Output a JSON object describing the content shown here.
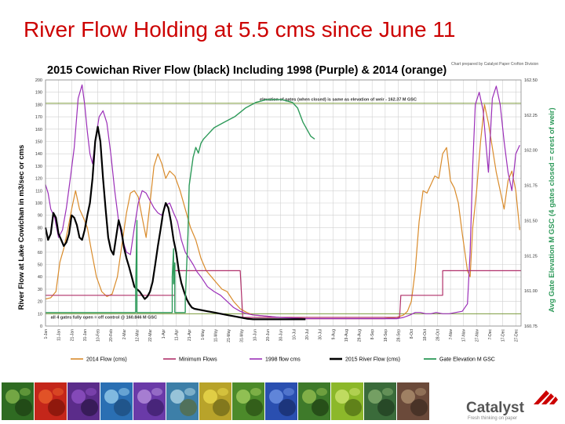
{
  "slide": {
    "title": "River Flow Holding at 5.5 cms since June 11"
  },
  "branding": {
    "name": "Catalyst",
    "tagline": "Fresh thinking on paper",
    "accent_color": "#cc0000"
  },
  "chart_data": {
    "type": "line",
    "title": "2015 Cowichan River Flow (black) Including 1998 (Purple) & 2014 (orange)",
    "credit": "Chart prepared by Catalyst Paper Crofton Division",
    "ylabel": "River Flow at Lake Cowichan in m3/sec or cms",
    "y2label": "Avg Gate Elevation M GSC (4 gates closed = crest of weir)",
    "ylim": [
      0,
      200
    ],
    "y2lim": [
      160.75,
      162.5
    ],
    "y_ticks": [
      {
        "v": 0,
        "label": "0"
      },
      {
        "v": 10,
        "label": "10"
      },
      {
        "v": 20,
        "label": "20"
      },
      {
        "v": 30,
        "label": "30"
      },
      {
        "v": 40,
        "label": "40"
      },
      {
        "v": 50,
        "label": "50"
      },
      {
        "v": 60,
        "label": "60"
      },
      {
        "v": 70,
        "label": "70"
      },
      {
        "v": 80,
        "label": "80"
      },
      {
        "v": 90,
        "label": "90"
      },
      {
        "v": 100,
        "label": "100"
      },
      {
        "v": 110,
        "label": "110"
      },
      {
        "v": 120,
        "label": "120"
      },
      {
        "v": 130,
        "label": "130"
      },
      {
        "v": 140,
        "label": "140"
      },
      {
        "v": 150,
        "label": "150"
      },
      {
        "v": 160,
        "label": "160"
      },
      {
        "v": 170,
        "label": "170"
      },
      {
        "v": 180,
        "label": "180"
      },
      {
        "v": 190,
        "label": "190"
      },
      {
        "v": 200,
        "label": "200"
      }
    ],
    "y2_ticks": [
      {
        "v": 160.75,
        "label": "160.75"
      },
      {
        "v": 161.0,
        "label": "161.00"
      },
      {
        "v": 161.25,
        "label": "161.25"
      },
      {
        "v": 161.5,
        "label": "161.50"
      },
      {
        "v": 161.75,
        "label": "161.75"
      },
      {
        "v": 162.0,
        "label": "162.00"
      },
      {
        "v": 162.25,
        "label": "162.25"
      },
      {
        "v": 162.5,
        "label": "162.50"
      }
    ],
    "x_range": [
      1,
      365
    ],
    "x_ticks": [
      {
        "d": 1,
        "label": "1-Jan"
      },
      {
        "d": 11,
        "label": "11-Jan"
      },
      {
        "d": 21,
        "label": "21-Jan"
      },
      {
        "d": 31,
        "label": "31-Jan"
      },
      {
        "d": 41,
        "label": "10-Feb"
      },
      {
        "d": 51,
        "label": "20-Feb"
      },
      {
        "d": 61,
        "label": "2-Mar"
      },
      {
        "d": 71,
        "label": "12-Mar"
      },
      {
        "d": 81,
        "label": "22-Mar"
      },
      {
        "d": 91,
        "label": "1-Apr"
      },
      {
        "d": 101,
        "label": "11-Apr"
      },
      {
        "d": 111,
        "label": "21-Apr"
      },
      {
        "d": 121,
        "label": "1-May"
      },
      {
        "d": 131,
        "label": "11-May"
      },
      {
        "d": 141,
        "label": "21-May"
      },
      {
        "d": 151,
        "label": "31-May"
      },
      {
        "d": 161,
        "label": "10-Jun"
      },
      {
        "d": 171,
        "label": "20-Jun"
      },
      {
        "d": 181,
        "label": "30-Jun"
      },
      {
        "d": 191,
        "label": "10-Jul"
      },
      {
        "d": 201,
        "label": "20-Jul"
      },
      {
        "d": 211,
        "label": "30-Jul"
      },
      {
        "d": 221,
        "label": "9-Aug"
      },
      {
        "d": 231,
        "label": "19-Aug"
      },
      {
        "d": 241,
        "label": "29-Aug"
      },
      {
        "d": 251,
        "label": "8-Sep"
      },
      {
        "d": 261,
        "label": "18-Sep"
      },
      {
        "d": 271,
        "label": "28-Sep"
      },
      {
        "d": 281,
        "label": "8-Oct"
      },
      {
        "d": 291,
        "label": "18-Oct"
      },
      {
        "d": 301,
        "label": "28-Oct"
      },
      {
        "d": 311,
        "label": "7-Nov"
      },
      {
        "d": 321,
        "label": "17-Nov"
      },
      {
        "d": 331,
        "label": "27-Nov"
      },
      {
        "d": 341,
        "label": "7-Dec"
      },
      {
        "d": 351,
        "label": "17-Dec"
      },
      {
        "d": 361,
        "label": "27-Dec"
      }
    ],
    "grid": true,
    "legend_position": "bottom",
    "annotations": [
      {
        "text": "elevation of gates (when closed) is same as elevation of weir - 162.37 M GSC",
        "x": 165,
        "y": 183
      },
      {
        "text": "all 4 gates fully open = off control @ 160.846 M GSC",
        "x": 5,
        "y": 6
      }
    ],
    "reference_lines": [
      {
        "name": "weir",
        "y": 181,
        "color": "#6b8e23"
      },
      {
        "name": "gates-open",
        "y": 10,
        "color": "#6b8e23"
      }
    ],
    "series": [
      {
        "name": "2014 Flow (cms)",
        "color": "#d98b2b",
        "width": 1.2,
        "x": [
          1,
          5,
          9,
          12,
          15,
          18,
          21,
          24,
          27,
          30,
          33,
          36,
          40,
          44,
          48,
          52,
          56,
          60,
          63,
          66,
          69,
          72,
          75,
          78,
          81,
          84,
          87,
          90,
          93,
          96,
          100,
          104,
          108,
          112,
          116,
          120,
          124,
          128,
          132,
          136,
          140,
          145,
          150,
          155,
          160,
          170,
          180,
          190,
          200,
          210,
          220,
          230,
          240,
          250,
          260,
          270,
          275,
          278,
          281,
          284,
          287,
          290,
          293,
          296,
          299,
          302,
          305,
          308,
          311,
          314,
          317,
          320,
          322,
          324,
          326,
          328,
          331,
          334,
          337,
          340,
          343,
          346,
          349,
          352,
          355,
          358,
          361,
          364
        ],
        "y": [
          22,
          23,
          28,
          52,
          63,
          78,
          95,
          110,
          95,
          88,
          80,
          62,
          40,
          28,
          24,
          26,
          40,
          70,
          92,
          108,
          110,
          105,
          88,
          72,
          100,
          130,
          140,
          132,
          120,
          126,
          122,
          110,
          95,
          80,
          70,
          55,
          45,
          40,
          35,
          30,
          28,
          20,
          14,
          11,
          9,
          8,
          7,
          7,
          6,
          6,
          6,
          6,
          6,
          6,
          6,
          7,
          9,
          12,
          20,
          45,
          85,
          110,
          108,
          115,
          122,
          120,
          140,
          145,
          118,
          112,
          100,
          75,
          60,
          45,
          40,
          80,
          110,
          150,
          180,
          165,
          145,
          125,
          110,
          95,
          118,
          126,
          110,
          78
        ]
      },
      {
        "name": "Minimum Flows",
        "color": "#b0306a",
        "width": 1.2,
        "x": [
          1,
          100,
          100,
          150,
          152,
          272,
          273,
          305,
          305,
          365
        ],
        "y": [
          25,
          25,
          45,
          45,
          7,
          7,
          25,
          25,
          45,
          45
        ]
      },
      {
        "name": "1998 flow cms",
        "color": "#9b2fb8",
        "width": 1.2,
        "x": [
          1,
          3,
          5,
          8,
          11,
          14,
          17,
          20,
          23,
          26,
          29,
          31,
          33,
          35,
          37,
          39,
          42,
          45,
          48,
          51,
          54,
          57,
          60,
          63,
          66,
          69,
          72,
          75,
          78,
          81,
          84,
          87,
          90,
          93,
          96,
          99,
          102,
          105,
          108,
          111,
          114,
          117,
          120,
          125,
          130,
          135,
          140,
          145,
          150,
          155,
          160,
          170,
          180,
          200,
          220,
          240,
          260,
          270,
          275,
          280,
          284,
          288,
          292,
          296,
          300,
          305,
          310,
          315,
          320,
          324,
          326,
          328,
          330,
          333,
          336,
          338,
          340,
          343,
          346,
          349,
          352,
          355,
          358,
          361,
          364
        ],
        "y": [
          115,
          108,
          95,
          88,
          72,
          78,
          96,
          120,
          145,
          185,
          196,
          180,
          158,
          140,
          132,
          150,
          170,
          175,
          165,
          140,
          110,
          85,
          70,
          60,
          58,
          80,
          100,
          110,
          108,
          102,
          96,
          92,
          90,
          98,
          100,
          92,
          85,
          70,
          60,
          55,
          50,
          44,
          40,
          32,
          28,
          25,
          20,
          15,
          12,
          10,
          9,
          8,
          7,
          6,
          6,
          6,
          6,
          6,
          7,
          9,
          11,
          11,
          10,
          10,
          11,
          10,
          10,
          11,
          12,
          18,
          60,
          130,
          180,
          190,
          175,
          150,
          125,
          185,
          195,
          180,
          150,
          125,
          110,
          140,
          147
        ]
      },
      {
        "name": "2015 River Flow (cms)",
        "color": "#000000",
        "width": 2.2,
        "x": [
          1,
          3,
          5,
          7,
          9,
          11,
          13,
          15,
          17,
          19,
          21,
          23,
          25,
          27,
          29,
          31,
          33,
          35,
          37,
          39,
          41,
          43,
          45,
          47,
          49,
          51,
          53,
          55,
          57,
          59,
          61,
          63,
          65,
          67,
          69,
          71,
          73,
          75,
          77,
          79,
          81,
          83,
          85,
          87,
          89,
          91,
          93,
          95,
          97,
          99,
          101,
          103,
          105,
          107,
          109,
          111,
          113,
          115,
          120,
          125,
          130,
          135,
          140,
          145,
          150,
          155,
          160,
          165,
          170,
          175,
          180,
          185,
          190,
          195,
          200
        ],
        "y": [
          80,
          70,
          75,
          92,
          88,
          75,
          70,
          65,
          68,
          75,
          90,
          88,
          82,
          72,
          70,
          78,
          90,
          100,
          120,
          150,
          162,
          150,
          120,
          95,
          72,
          62,
          58,
          72,
          86,
          78,
          64,
          55,
          48,
          40,
          32,
          30,
          28,
          25,
          22,
          24,
          28,
          36,
          50,
          65,
          78,
          92,
          100,
          96,
          85,
          70,
          60,
          45,
          35,
          28,
          22,
          18,
          15,
          14,
          13,
          12,
          11,
          10,
          9,
          8,
          7,
          6,
          5.5,
          5.5,
          5.5,
          5.5,
          5.5,
          5.5,
          5.5,
          5.5,
          5.5
        ]
      },
      {
        "name": "Gate Elevation M GSC",
        "color": "#2e9a5a",
        "width": 1.4,
        "axis": "y2",
        "x": [
          1,
          70,
          70,
          71,
          71,
          98,
          98,
          99,
          99,
          100,
          100,
          108,
          108,
          110,
          111,
          114,
          116,
          118,
          120,
          122,
          124,
          126,
          128,
          130,
          134,
          138,
          142,
          146,
          150,
          154,
          158,
          162,
          166,
          170,
          174,
          178,
          182,
          186,
          190,
          194,
          198,
          201,
          204,
          207
        ],
        "y": [
          160.846,
          160.846,
          161.02,
          161.5,
          160.846,
          160.846,
          161.1,
          161.3,
          161.05,
          161.2,
          160.846,
          160.846,
          160.93,
          161.4,
          161.75,
          161.95,
          162.02,
          161.98,
          162.05,
          162.08,
          162.1,
          162.12,
          162.14,
          162.16,
          162.18,
          162.2,
          162.22,
          162.24,
          162.27,
          162.3,
          162.32,
          162.34,
          162.35,
          162.36,
          162.36,
          162.36,
          162.36,
          162.35,
          162.34,
          162.3,
          162.2,
          162.15,
          162.1,
          162.08
        ]
      }
    ]
  },
  "photos": [
    {
      "name": "fern",
      "colors": [
        "#2f6b22",
        "#7fb04a",
        "#1c3d12"
      ]
    },
    {
      "name": "red-flowers",
      "colors": [
        "#c4261a",
        "#e65a2a",
        "#7a1208"
      ]
    },
    {
      "name": "purple-flowers",
      "colors": [
        "#5b2c8a",
        "#8c4fc0",
        "#2a1645"
      ]
    },
    {
      "name": "ocean",
      "colors": [
        "#2a6fb3",
        "#8fc7e8",
        "#1c4a7a"
      ]
    },
    {
      "name": "purple-bloom",
      "colors": [
        "#6a3aa8",
        "#b08ad8",
        "#3a1d66"
      ]
    },
    {
      "name": "coastline",
      "colors": [
        "#3d7fa8",
        "#a7cfe0",
        "#5a6b3a"
      ]
    },
    {
      "name": "yellow-leaves",
      "colors": [
        "#b8a32a",
        "#e6d64a",
        "#6b6518"
      ]
    },
    {
      "name": "green-leaf",
      "colors": [
        "#4c8a2a",
        "#9cc85a",
        "#2a4d14"
      ]
    },
    {
      "name": "blue-flowers",
      "colors": [
        "#2a4fb0",
        "#6a8ee0",
        "#172b66"
      ]
    },
    {
      "name": "moss",
      "colors": [
        "#3e7a2a",
        "#8db84c",
        "#1e3d12"
      ]
    },
    {
      "name": "chartreuse",
      "colors": [
        "#8cb82a",
        "#c8e06a",
        "#4d6b14"
      ]
    },
    {
      "name": "plant",
      "colors": [
        "#3a6b3a",
        "#7fa86b",
        "#1f3a1f"
      ]
    },
    {
      "name": "brown-leaves",
      "colors": [
        "#6b4a3a",
        "#a88a6b",
        "#3a2a1f"
      ]
    }
  ]
}
